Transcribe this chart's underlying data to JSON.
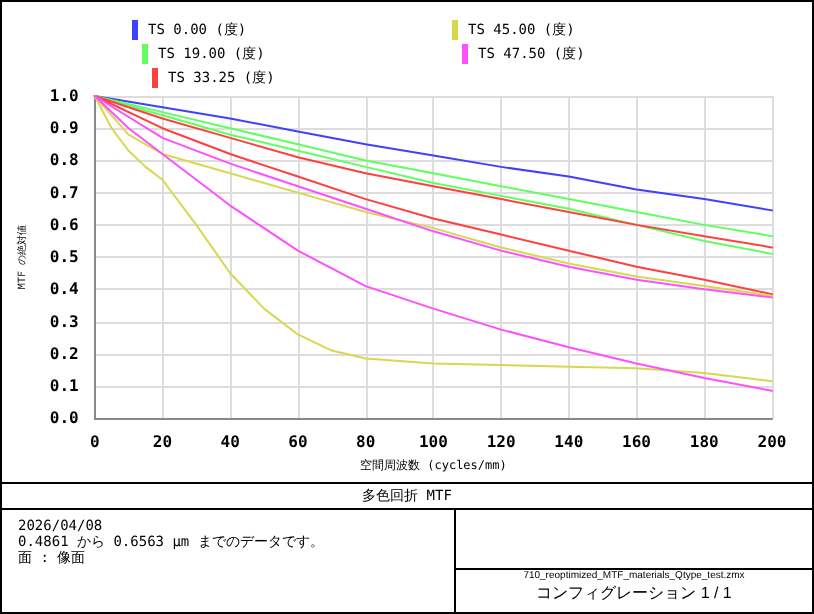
{
  "chart_data": {
    "type": "line",
    "title": "多色回折 MTF",
    "xlabel": "空間周波数 (cycles/mm)",
    "ylabel": "MTF の絶対値",
    "annotations": [
      "2026/04/08",
      "0.4861 から 0.6563 µm までのデータです。",
      "面 : 像面",
      "710_reoptimized_MTF_materials_Qtype_test.zmx",
      "コンフィグレーション 1 / 1"
    ],
    "xlim": [
      0,
      200
    ],
    "xticks": [
      0,
      20,
      40,
      60,
      80,
      100,
      120,
      140,
      160,
      180,
      200
    ],
    "ylim": [
      0,
      1
    ],
    "yticks": [
      {
        "value": 0,
        "label": "0.0"
      },
      0.1,
      0.2,
      0.3,
      0.4,
      0.5,
      0.6,
      0.7,
      0.8,
      0.9,
      {
        "value": 1,
        "label": "1.0"
      }
    ],
    "grid": true,
    "legend": "top",
    "marker": "none",
    "line_style": "solid",
    "series": [
      {
        "name": "TS 0.00 (度)",
        "color": "#4040ff",
        "x": [
          0,
          20,
          40,
          60,
          80,
          100,
          120,
          140,
          160,
          180,
          200
        ],
        "values": [
          1,
          0.965,
          0.93,
          0.89,
          0.85,
          0.815,
          0.78,
          0.75,
          0.71,
          0.68,
          0.645
        ]
      },
      {
        "name": "TS 19.00 (度)",
        "color": "#60ff60",
        "x": [
          0,
          20,
          40,
          60,
          80,
          100,
          120,
          140,
          160,
          180,
          200
        ],
        "values": [
          1,
          0.95,
          0.9,
          0.85,
          0.8,
          0.76,
          0.72,
          0.68,
          0.64,
          0.6,
          0.565
        ]
      },
      {
        "color": "#60ff60",
        "x": [
          0,
          20,
          40,
          60,
          80,
          100,
          120,
          140,
          160,
          180,
          200
        ],
        "values": [
          1,
          0.94,
          0.88,
          0.83,
          0.78,
          0.73,
          0.69,
          0.65,
          0.6,
          0.55,
          0.51
        ]
      },
      {
        "name": "TS 33.25 (度)",
        "color": "#ff4040",
        "x": [
          0,
          20,
          40,
          60,
          80,
          100,
          120,
          140,
          160,
          180,
          200
        ],
        "values": [
          1,
          0.93,
          0.87,
          0.81,
          0.76,
          0.72,
          0.68,
          0.64,
          0.6,
          0.565,
          0.53
        ]
      },
      {
        "color": "#ff4040",
        "x": [
          0,
          20,
          40,
          60,
          80,
          100,
          120,
          140,
          160,
          180,
          200
        ],
        "values": [
          1,
          0.9,
          0.82,
          0.75,
          0.68,
          0.62,
          0.57,
          0.52,
          0.47,
          0.43,
          0.385
        ]
      },
      {
        "name": "TS 45.00 (度)",
        "color": "#d8d850",
        "x": [
          0,
          10,
          20,
          40,
          60,
          80,
          100,
          120,
          140,
          160,
          180,
          200
        ],
        "values": [
          1,
          0.88,
          0.82,
          0.76,
          0.7,
          0.64,
          0.59,
          0.53,
          0.48,
          0.44,
          0.41,
          0.38
        ]
      },
      {
        "color": "#d8d850",
        "x": [
          0,
          5,
          10,
          15,
          20,
          30,
          40,
          50,
          60,
          70,
          80,
          100,
          120,
          140,
          160,
          180,
          200
        ],
        "values": [
          1,
          0.9,
          0.83,
          0.78,
          0.74,
          0.6,
          0.45,
          0.34,
          0.26,
          0.21,
          0.185,
          0.17,
          0.165,
          0.16,
          0.155,
          0.14,
          0.115
        ]
      },
      {
        "name": "TS 47.50 (度)",
        "color": "#ff50ff",
        "x": [
          0,
          20,
          40,
          60,
          80,
          100,
          120,
          140,
          160,
          180,
          200
        ],
        "values": [
          1,
          0.87,
          0.79,
          0.72,
          0.65,
          0.58,
          0.52,
          0.47,
          0.43,
          0.4,
          0.375
        ]
      },
      {
        "color": "#ff50ff",
        "x": [
          0,
          10,
          20,
          30,
          40,
          60,
          80,
          100,
          120,
          140,
          160,
          180,
          200
        ],
        "values": [
          1,
          0.9,
          0.82,
          0.74,
          0.66,
          0.52,
          0.41,
          0.34,
          0.275,
          0.22,
          0.17,
          0.125,
          0.085
        ]
      }
    ]
  }
}
